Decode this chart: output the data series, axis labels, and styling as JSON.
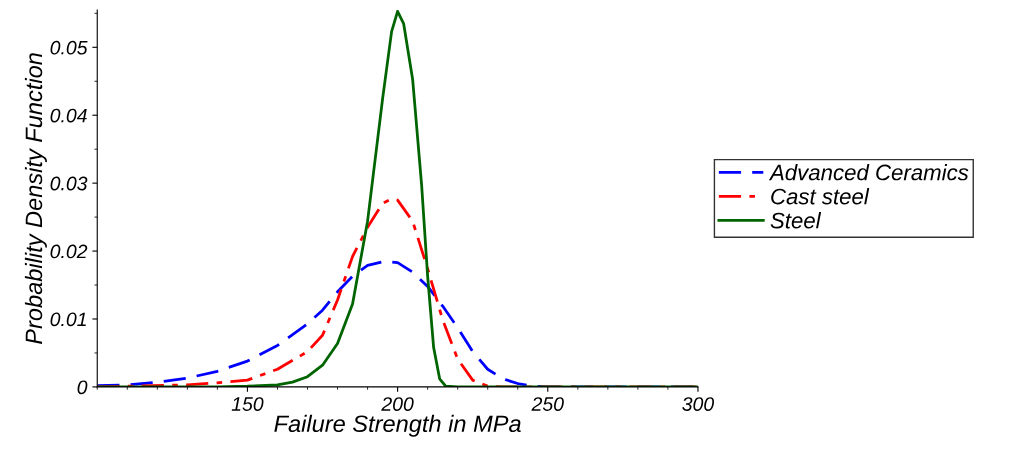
{
  "chart_data": {
    "type": "line",
    "xlabel": "Failure Strength in MPa",
    "ylabel": "Probability Density Function",
    "xlim": [
      100,
      300
    ],
    "xticks": [
      150,
      200,
      250,
      300
    ],
    "ylim": [
      0,
      0.0555
    ],
    "yticks": [
      0,
      0.01,
      0.02,
      0.03,
      0.04,
      0.05
    ],
    "grid": false,
    "legend": "right",
    "series": [
      {
        "name": "Advanced Ceramics",
        "color": "#0000ff",
        "line_style": "dashed",
        "x": [
          100,
          110,
          120,
          130,
          140,
          150,
          160,
          170,
          175,
          180,
          185,
          190,
          196,
          200,
          205,
          210,
          215,
          220,
          225,
          230,
          235,
          240,
          245,
          250,
          300
        ],
        "values": [
          0.0002,
          0.0003,
          0.0007,
          0.0013,
          0.0023,
          0.0038,
          0.0061,
          0.0093,
          0.0113,
          0.014,
          0.0163,
          0.0179,
          0.0185,
          0.0183,
          0.0169,
          0.0148,
          0.0119,
          0.0087,
          0.0052,
          0.0026,
          0.0012,
          0.0005,
          0.0001,
          0,
          0
        ]
      },
      {
        "name": "Cast steel",
        "color": "#ff0000",
        "line_style": "dashdot",
        "x": [
          100,
          130,
          140,
          150,
          160,
          170,
          175,
          180,
          185,
          190,
          195,
          198,
          200,
          205,
          210,
          215,
          220,
          225,
          230,
          235,
          300
        ],
        "values": [
          0,
          0.0003,
          0.0006,
          0.001,
          0.0026,
          0.0052,
          0.0076,
          0.0128,
          0.0192,
          0.0235,
          0.027,
          0.0277,
          0.0275,
          0.0244,
          0.0174,
          0.0099,
          0.0041,
          0.001,
          0.0001,
          0,
          0
        ]
      },
      {
        "name": "Steel",
        "color": "#006400",
        "line_style": "solid",
        "x": [
          100,
          140,
          150,
          160,
          165,
          170,
          175,
          180,
          185,
          190,
          195,
          198,
          200,
          202,
          205,
          208,
          210,
          212,
          214,
          216,
          220,
          300
        ],
        "values": [
          0,
          0,
          0.0001,
          0.0003,
          0.0007,
          0.0015,
          0.0032,
          0.0064,
          0.0122,
          0.0244,
          0.0424,
          0.0523,
          0.0553,
          0.0535,
          0.0453,
          0.0297,
          0.0163,
          0.0058,
          0.0012,
          0.0001,
          0,
          0
        ]
      }
    ]
  }
}
